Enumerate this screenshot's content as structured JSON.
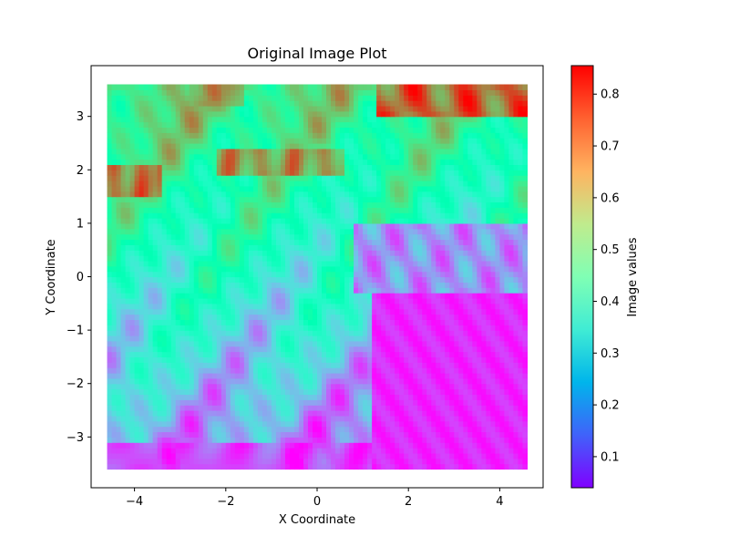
{
  "chart_data": {
    "type": "heatmap",
    "title": "Original Image Plot",
    "xlabel": "X Coordinate",
    "ylabel": "Y Coordinate",
    "xlim": [
      -4.95,
      4.95
    ],
    "ylim": [
      -3.95,
      3.95
    ],
    "data_extent": {
      "x": [
        -4.6,
        4.6
      ],
      "y": [
        -3.6,
        3.6
      ]
    },
    "xticks": [
      -4,
      -2,
      0,
      2,
      4
    ],
    "xtick_labels": [
      "−4",
      "−2",
      "0",
      "2",
      "4"
    ],
    "yticks": [
      -3,
      -2,
      -1,
      0,
      1,
      2,
      3
    ],
    "ytick_labels": [
      "−3",
      "−2",
      "−1",
      "0",
      "1",
      "2",
      "3"
    ],
    "colormap": "rainbow",
    "colorbar": {
      "label": "Image values",
      "range": [
        0.04,
        0.855
      ],
      "ticks": [
        0.1,
        0.2,
        0.3,
        0.4,
        0.5,
        0.6,
        0.7,
        0.8
      ],
      "tick_labels": [
        "0.1",
        "0.2",
        "0.3",
        "0.4",
        "0.5",
        "0.6",
        "0.7",
        "0.8"
      ]
    },
    "grid": false,
    "regions": [
      {
        "name": "lower-right low block",
        "x": [
          1.2,
          4.6
        ],
        "y": [
          -3.6,
          -0.3
        ],
        "value": 0.08
      },
      {
        "name": "upper-left high band",
        "x": [
          -4.6,
          -3.6
        ],
        "y": [
          1.5,
          2.1
        ],
        "value": 0.76
      },
      {
        "name": "upper band",
        "x": [
          -2.0,
          0.6
        ],
        "y": [
          1.9,
          2.4
        ],
        "value": 0.74
      },
      {
        "name": "upper-right high band",
        "x": [
          1.4,
          4.6
        ],
        "y": [
          3.1,
          3.6
        ],
        "value": 0.82
      },
      {
        "name": "center-right mid",
        "x": [
          0.8,
          4.6
        ],
        "y": [
          -0.3,
          1.0
        ],
        "value": 0.22
      }
    ]
  }
}
